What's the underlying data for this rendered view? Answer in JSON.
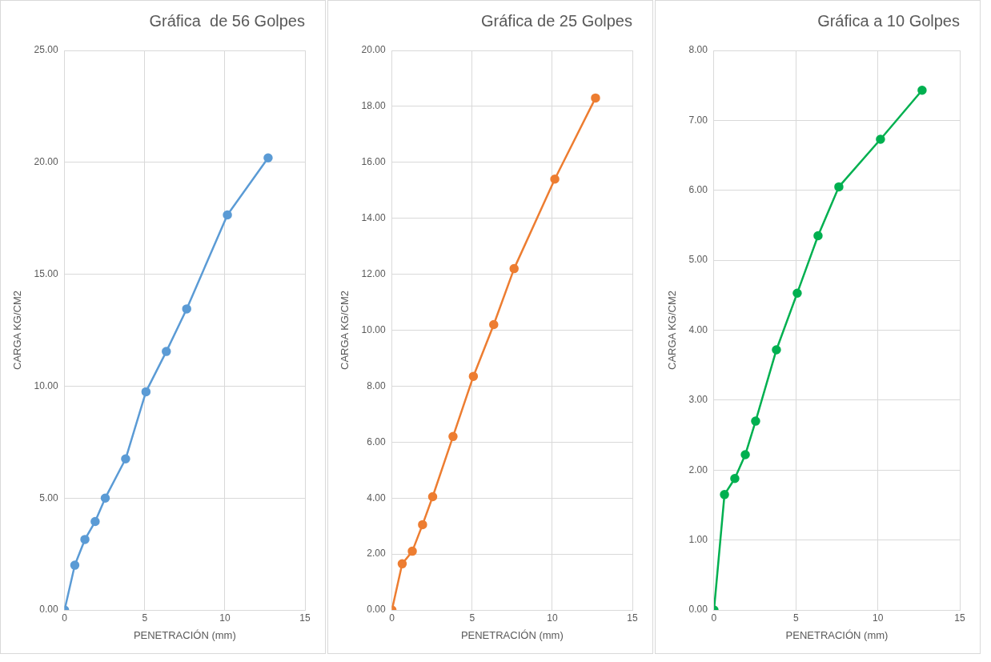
{
  "chart_data": [
    {
      "type": "line",
      "title": "Gráfica  de 56 Golpes",
      "xlabel": "PENETRACIÓN (mm)",
      "ylabel": "CARGA KG/CM2",
      "x": [
        0,
        0.64,
        1.27,
        1.91,
        2.54,
        3.81,
        5.08,
        6.35,
        7.62,
        10.16,
        12.7
      ],
      "series": [
        {
          "color": "#5b9bd5",
          "values": [
            0,
            2.0,
            3.15,
            3.95,
            5.0,
            6.75,
            9.75,
            11.55,
            13.45,
            17.65,
            20.2
          ]
        }
      ],
      "xlim": [
        0,
        15
      ],
      "xticks": [
        0,
        5,
        10,
        15
      ],
      "ylim": [
        0,
        25
      ],
      "yticks": [
        {
          "value": 0,
          "label": "0.00"
        },
        {
          "value": 5,
          "label": "5.00"
        },
        {
          "value": 10,
          "label": "10.00"
        },
        {
          "value": 15,
          "label": "15.00"
        },
        {
          "value": 20,
          "label": "20.00"
        },
        {
          "value": 25,
          "label": "25.00"
        }
      ],
      "grid": true,
      "legend": false,
      "marker": "circle",
      "line_style": "solid"
    },
    {
      "type": "line",
      "title": "Gráfica de 25 Golpes",
      "xlabel": "PENETRACIÓN (mm)",
      "ylabel": "CARGA KG/CM2",
      "x": [
        0,
        0.64,
        1.27,
        1.91,
        2.54,
        3.81,
        5.08,
        6.35,
        7.62,
        10.16,
        12.7
      ],
      "series": [
        {
          "color": "#ed7d31",
          "values": [
            0,
            1.65,
            2.1,
            3.05,
            4.05,
            6.2,
            8.35,
            10.2,
            12.2,
            15.4,
            18.3
          ]
        }
      ],
      "xlim": [
        0,
        15
      ],
      "xticks": [
        0,
        5,
        10,
        15
      ],
      "ylim": [
        0,
        20
      ],
      "yticks": [
        {
          "value": 0,
          "label": "0.00"
        },
        {
          "value": 2,
          "label": "2.00"
        },
        {
          "value": 4,
          "label": "4.00"
        },
        {
          "value": 6,
          "label": "6.00"
        },
        {
          "value": 8,
          "label": "8.00"
        },
        {
          "value": 10,
          "label": "10.00"
        },
        {
          "value": 12,
          "label": "12.00"
        },
        {
          "value": 14,
          "label": "14.00"
        },
        {
          "value": 16,
          "label": "16.00"
        },
        {
          "value": 18,
          "label": "18.00"
        },
        {
          "value": 20,
          "label": "20.00"
        }
      ],
      "grid": true,
      "legend": false,
      "marker": "circle",
      "line_style": "solid"
    },
    {
      "type": "line",
      "title": "Gráfica a 10 Golpes",
      "xlabel": "PENETRACIÓN (mm)",
      "ylabel": "CARGA KG/CM2",
      "x": [
        0,
        0.64,
        1.27,
        1.91,
        2.54,
        3.81,
        5.08,
        6.35,
        7.62,
        10.16,
        12.7
      ],
      "series": [
        {
          "color": "#00b050",
          "values": [
            0,
            1.65,
            1.88,
            2.22,
            2.7,
            3.72,
            4.53,
            5.35,
            6.05,
            6.73,
            7.43
          ]
        }
      ],
      "xlim": [
        0,
        15
      ],
      "xticks": [
        0,
        5,
        10,
        15
      ],
      "ylim": [
        0,
        8
      ],
      "yticks": [
        {
          "value": 0,
          "label": "0.00"
        },
        {
          "value": 1,
          "label": "1.00"
        },
        {
          "value": 2,
          "label": "2.00"
        },
        {
          "value": 3,
          "label": "3.00"
        },
        {
          "value": 4,
          "label": "4.00"
        },
        {
          "value": 5,
          "label": "5.00"
        },
        {
          "value": 6,
          "label": "6.00"
        },
        {
          "value": 7,
          "label": "7.00"
        },
        {
          "value": 8,
          "label": "8.00"
        }
      ],
      "grid": true,
      "legend": false,
      "marker": "circle",
      "line_style": "solid"
    }
  ]
}
